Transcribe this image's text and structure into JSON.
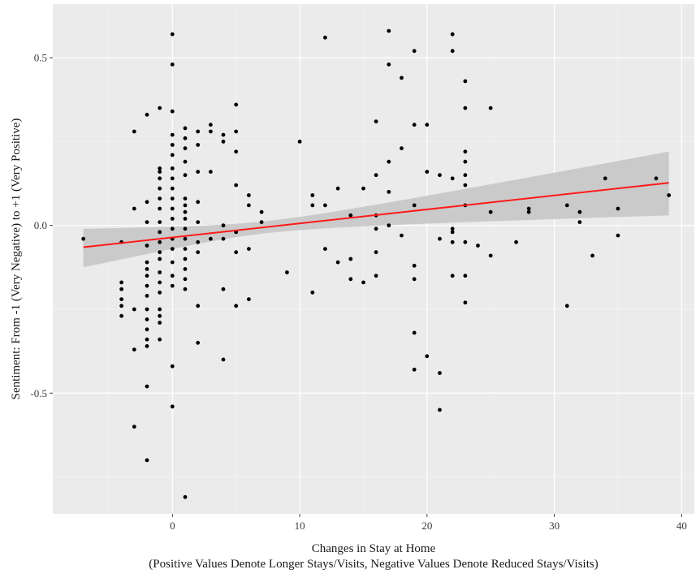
{
  "chart_data": {
    "type": "scatter",
    "xlabel": "Changes in Stay at Home",
    "xlabel_line2": "(Positive Values Denote Longer Stays/Visits, Negative Values Denote Reduced Stays/Visits)",
    "ylabel": "Sentiment: From -1 (Very Negative) to +1 (Very Positive)",
    "xlim": [
      -9.4,
      41
    ],
    "ylim": [
      -0.86,
      0.66
    ],
    "x_ticks": [
      0,
      10,
      20,
      30,
      40
    ],
    "x_tick_labels": [
      "0",
      "10",
      "20",
      "30",
      "40"
    ],
    "y_ticks": [
      -0.5,
      0.0,
      0.5
    ],
    "y_tick_labels": [
      "-0.5",
      "0.0",
      "0.5"
    ],
    "grid": true,
    "background_color": "#ebebeb",
    "point_color": "#000000",
    "fit_line_color": "#ff1a1a",
    "band_color": "#c4c4c4",
    "points": [
      {
        "x": -7,
        "y": -0.04
      },
      {
        "x": -4,
        "y": -0.05
      },
      {
        "x": -4,
        "y": -0.17
      },
      {
        "x": -4,
        "y": -0.19
      },
      {
        "x": -4,
        "y": -0.22
      },
      {
        "x": -4,
        "y": -0.24
      },
      {
        "x": -4,
        "y": -0.27
      },
      {
        "x": -3,
        "y": 0.28
      },
      {
        "x": -3,
        "y": 0.05
      },
      {
        "x": -3,
        "y": -0.25
      },
      {
        "x": -3,
        "y": -0.37
      },
      {
        "x": -3,
        "y": -0.6
      },
      {
        "x": -2,
        "y": 0.33
      },
      {
        "x": -2,
        "y": 0.07
      },
      {
        "x": -2,
        "y": 0.01
      },
      {
        "x": -2,
        "y": -0.06
      },
      {
        "x": -2,
        "y": -0.11
      },
      {
        "x": -2,
        "y": -0.13
      },
      {
        "x": -2,
        "y": -0.15
      },
      {
        "x": -2,
        "y": -0.18
      },
      {
        "x": -2,
        "y": -0.21
      },
      {
        "x": -2,
        "y": -0.25
      },
      {
        "x": -2,
        "y": -0.28
      },
      {
        "x": -2,
        "y": -0.31
      },
      {
        "x": -2,
        "y": -0.34
      },
      {
        "x": -2,
        "y": -0.36
      },
      {
        "x": -2,
        "y": -0.48
      },
      {
        "x": -2,
        "y": -0.7
      },
      {
        "x": -1,
        "y": 0.35
      },
      {
        "x": -1,
        "y": 0.17
      },
      {
        "x": -1,
        "y": 0.16
      },
      {
        "x": -1,
        "y": 0.14
      },
      {
        "x": -1,
        "y": 0.11
      },
      {
        "x": -1,
        "y": 0.08
      },
      {
        "x": -1,
        "y": 0.05
      },
      {
        "x": -1,
        "y": 0.01
      },
      {
        "x": -1,
        "y": -0.02
      },
      {
        "x": -1,
        "y": -0.05
      },
      {
        "x": -1,
        "y": -0.08
      },
      {
        "x": -1,
        "y": -0.1
      },
      {
        "x": -1,
        "y": -0.14
      },
      {
        "x": -1,
        "y": -0.17
      },
      {
        "x": -1,
        "y": -0.2
      },
      {
        "x": -1,
        "y": -0.25
      },
      {
        "x": -1,
        "y": -0.27
      },
      {
        "x": -1,
        "y": -0.29
      },
      {
        "x": -1,
        "y": -0.34
      },
      {
        "x": 0,
        "y": 0.57
      },
      {
        "x": 0,
        "y": 0.48
      },
      {
        "x": 0,
        "y": 0.34
      },
      {
        "x": 0,
        "y": 0.27
      },
      {
        "x": 0,
        "y": 0.24
      },
      {
        "x": 0,
        "y": 0.21
      },
      {
        "x": 0,
        "y": 0.17
      },
      {
        "x": 0,
        "y": 0.14
      },
      {
        "x": 0,
        "y": 0.11
      },
      {
        "x": 0,
        "y": 0.08
      },
      {
        "x": 0,
        "y": 0.05
      },
      {
        "x": 0,
        "y": 0.02
      },
      {
        "x": 0,
        "y": -0.01
      },
      {
        "x": 0,
        "y": -0.04
      },
      {
        "x": 0,
        "y": -0.07
      },
      {
        "x": 0,
        "y": -0.11
      },
      {
        "x": 0,
        "y": -0.15
      },
      {
        "x": 0,
        "y": -0.18
      },
      {
        "x": 0,
        "y": -0.42
      },
      {
        "x": 0,
        "y": -0.54
      },
      {
        "x": 1,
        "y": 0.29
      },
      {
        "x": 1,
        "y": 0.26
      },
      {
        "x": 1,
        "y": 0.23
      },
      {
        "x": 1,
        "y": 0.19
      },
      {
        "x": 1,
        "y": 0.15
      },
      {
        "x": 1,
        "y": 0.08
      },
      {
        "x": 1,
        "y": 0.06
      },
      {
        "x": 1,
        "y": 0.04
      },
      {
        "x": 1,
        "y": 0.02
      },
      {
        "x": 1,
        "y": -0.01
      },
      {
        "x": 1,
        "y": -0.04
      },
      {
        "x": 1,
        "y": -0.07
      },
      {
        "x": 1,
        "y": -0.1
      },
      {
        "x": 1,
        "y": -0.13
      },
      {
        "x": 1,
        "y": -0.16
      },
      {
        "x": 1,
        "y": -0.19
      },
      {
        "x": 1,
        "y": -0.81
      },
      {
        "x": 2,
        "y": 0.28
      },
      {
        "x": 2,
        "y": 0.24
      },
      {
        "x": 2,
        "y": 0.16
      },
      {
        "x": 2,
        "y": 0.07
      },
      {
        "x": 2,
        "y": 0.01
      },
      {
        "x": 2,
        "y": -0.05
      },
      {
        "x": 2,
        "y": -0.08
      },
      {
        "x": 2,
        "y": -0.24
      },
      {
        "x": 2,
        "y": -0.35
      },
      {
        "x": 3,
        "y": 0.3
      },
      {
        "x": 3,
        "y": 0.28
      },
      {
        "x": 3,
        "y": 0.16
      },
      {
        "x": 3,
        "y": -0.04
      },
      {
        "x": 4,
        "y": 0.27
      },
      {
        "x": 4,
        "y": 0.25
      },
      {
        "x": 4,
        "y": 0.0
      },
      {
        "x": 4,
        "y": -0.04
      },
      {
        "x": 4,
        "y": -0.19
      },
      {
        "x": 4,
        "y": -0.4
      },
      {
        "x": 5,
        "y": 0.36
      },
      {
        "x": 5,
        "y": 0.28
      },
      {
        "x": 5,
        "y": 0.22
      },
      {
        "x": 5,
        "y": 0.12
      },
      {
        "x": 5,
        "y": -0.02
      },
      {
        "x": 5,
        "y": -0.08
      },
      {
        "x": 5,
        "y": -0.24
      },
      {
        "x": 6,
        "y": 0.09
      },
      {
        "x": 6,
        "y": 0.06
      },
      {
        "x": 6,
        "y": -0.07
      },
      {
        "x": 6,
        "y": -0.22
      },
      {
        "x": 7,
        "y": 0.04
      },
      {
        "x": 7,
        "y": 0.01
      },
      {
        "x": 9,
        "y": -0.14
      },
      {
        "x": 10,
        "y": 0.25
      },
      {
        "x": 11,
        "y": 0.09
      },
      {
        "x": 11,
        "y": 0.06
      },
      {
        "x": 11,
        "y": -0.2
      },
      {
        "x": 12,
        "y": 0.56
      },
      {
        "x": 12,
        "y": 0.06
      },
      {
        "x": 12,
        "y": -0.07
      },
      {
        "x": 13,
        "y": 0.11
      },
      {
        "x": 13,
        "y": -0.11
      },
      {
        "x": 14,
        "y": 0.03
      },
      {
        "x": 14,
        "y": -0.1
      },
      {
        "x": 14,
        "y": -0.16
      },
      {
        "x": 15,
        "y": 0.11
      },
      {
        "x": 15,
        "y": -0.17
      },
      {
        "x": 16,
        "y": 0.31
      },
      {
        "x": 16,
        "y": 0.15
      },
      {
        "x": 16,
        "y": 0.03
      },
      {
        "x": 16,
        "y": -0.01
      },
      {
        "x": 16,
        "y": -0.08
      },
      {
        "x": 16,
        "y": -0.15
      },
      {
        "x": 17,
        "y": 0.58
      },
      {
        "x": 17,
        "y": 0.48
      },
      {
        "x": 17,
        "y": 0.19
      },
      {
        "x": 17,
        "y": 0.1
      },
      {
        "x": 17,
        "y": 0.0
      },
      {
        "x": 18,
        "y": 0.44
      },
      {
        "x": 18,
        "y": 0.23
      },
      {
        "x": 18,
        "y": -0.03
      },
      {
        "x": 19,
        "y": 0.52
      },
      {
        "x": 19,
        "y": 0.3
      },
      {
        "x": 19,
        "y": 0.06
      },
      {
        "x": 19,
        "y": -0.12
      },
      {
        "x": 19,
        "y": -0.16
      },
      {
        "x": 19,
        "y": -0.32
      },
      {
        "x": 19,
        "y": -0.43
      },
      {
        "x": 20,
        "y": 0.3
      },
      {
        "x": 20,
        "y": 0.16
      },
      {
        "x": 20,
        "y": -0.39
      },
      {
        "x": 21,
        "y": 0.15
      },
      {
        "x": 21,
        "y": -0.04
      },
      {
        "x": 21,
        "y": -0.44
      },
      {
        "x": 21,
        "y": -0.55
      },
      {
        "x": 22,
        "y": 0.57
      },
      {
        "x": 22,
        "y": 0.52
      },
      {
        "x": 22,
        "y": 0.14
      },
      {
        "x": 22,
        "y": -0.01
      },
      {
        "x": 22,
        "y": -0.02
      },
      {
        "x": 22,
        "y": -0.05
      },
      {
        "x": 22,
        "y": -0.15
      },
      {
        "x": 23,
        "y": 0.43
      },
      {
        "x": 23,
        "y": 0.35
      },
      {
        "x": 23,
        "y": 0.22
      },
      {
        "x": 23,
        "y": 0.19
      },
      {
        "x": 23,
        "y": 0.15
      },
      {
        "x": 23,
        "y": 0.12
      },
      {
        "x": 23,
        "y": 0.06
      },
      {
        "x": 23,
        "y": -0.05
      },
      {
        "x": 23,
        "y": -0.15
      },
      {
        "x": 23,
        "y": -0.23
      },
      {
        "x": 24,
        "y": -0.06
      },
      {
        "x": 25,
        "y": 0.35
      },
      {
        "x": 25,
        "y": 0.04
      },
      {
        "x": 25,
        "y": -0.09
      },
      {
        "x": 27,
        "y": -0.05
      },
      {
        "x": 28,
        "y": 0.05
      },
      {
        "x": 28,
        "y": 0.04
      },
      {
        "x": 31,
        "y": 0.06
      },
      {
        "x": 31,
        "y": -0.24
      },
      {
        "x": 32,
        "y": 0.04
      },
      {
        "x": 32,
        "y": 0.01
      },
      {
        "x": 33,
        "y": -0.09
      },
      {
        "x": 34,
        "y": 0.14
      },
      {
        "x": 35,
        "y": 0.05
      },
      {
        "x": 35,
        "y": -0.03
      },
      {
        "x": 38,
        "y": 0.14
      },
      {
        "x": 39,
        "y": 0.09
      }
    ],
    "fit_line": {
      "x": [
        -7,
        39
      ],
      "y": [
        -0.065,
        0.127
      ],
      "ci_lower": [
        -0.125,
        0.03
      ],
      "ci_upper": [
        -0.01,
        0.22
      ]
    }
  }
}
